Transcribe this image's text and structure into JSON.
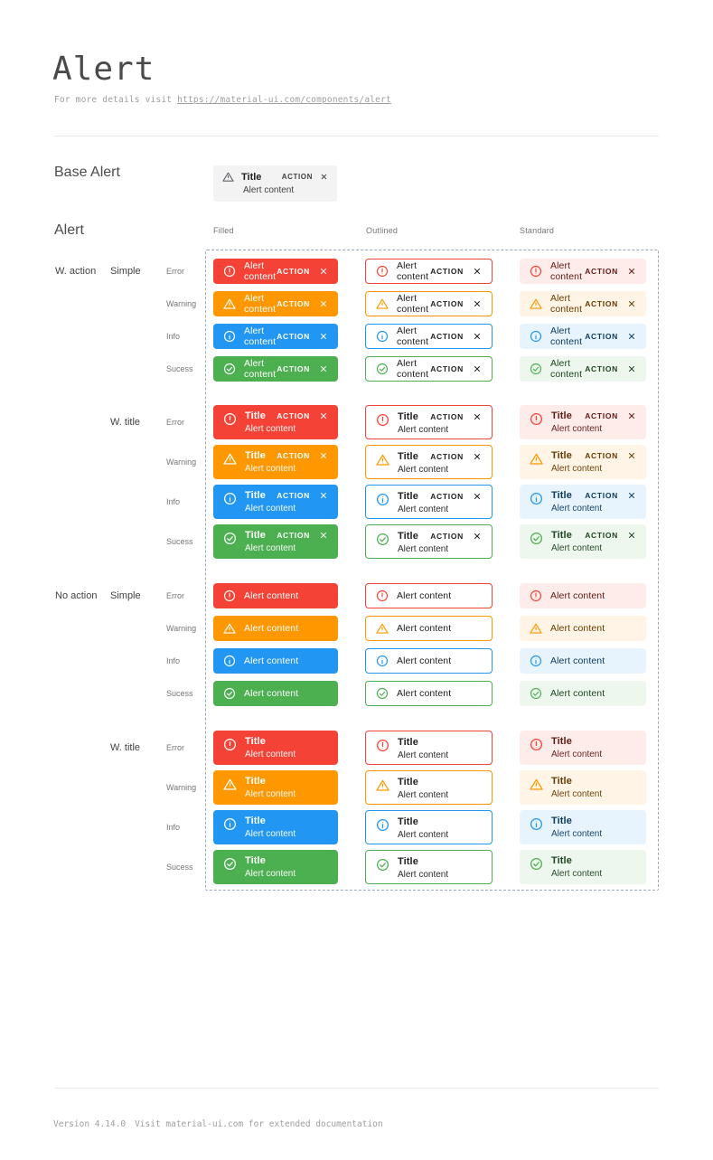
{
  "page": {
    "title": "Alert",
    "subtitle_prefix": "For more details visit ",
    "subtitle_link": "https://material-ui.com/components/alert"
  },
  "base_section": {
    "label": "Base Alert",
    "alert": {
      "title": "Title",
      "content": "Alert content",
      "action": "ACTION"
    },
    "colors": {
      "background": "#f3f3f3",
      "foreground": "#424242",
      "icon": "#5f6368"
    }
  },
  "alert_section": {
    "label": "Alert",
    "columns": [
      "Filled",
      "Outlined",
      "Standard"
    ],
    "groups": [
      {
        "label": "W. action",
        "sub_label": "Simple",
        "titled": false,
        "with_action": true
      },
      {
        "label": "",
        "sub_label": "W. title",
        "titled": true,
        "with_action": true
      },
      {
        "label": "No action",
        "sub_label": "Simple",
        "titled": false,
        "with_action": false
      },
      {
        "label": "",
        "sub_label": "W. title",
        "titled": true,
        "with_action": false
      }
    ],
    "severities": [
      {
        "key": "error",
        "label": "Error",
        "main": "#f44336",
        "bg": "#fdecea",
        "deep": "#611a15"
      },
      {
        "key": "warning",
        "label": "Warning",
        "main": "#ff9800",
        "bg": "#fff4e5",
        "deep": "#663c00"
      },
      {
        "key": "info",
        "label": "Info",
        "main": "#2196f3",
        "bg": "#e8f4fd",
        "deep": "#0d3c61"
      },
      {
        "key": "success",
        "label": "Sucess",
        "main": "#4caf50",
        "bg": "#edf7ed",
        "deep": "#1e4620"
      }
    ],
    "outlined_text_color": "#212121"
  },
  "alert_texts": {
    "title": "Title",
    "content": "Alert content",
    "action": "ACTION"
  },
  "footer": {
    "version": "Version 4.14.0",
    "note": "Visit material-ui.com for extended documentation"
  }
}
